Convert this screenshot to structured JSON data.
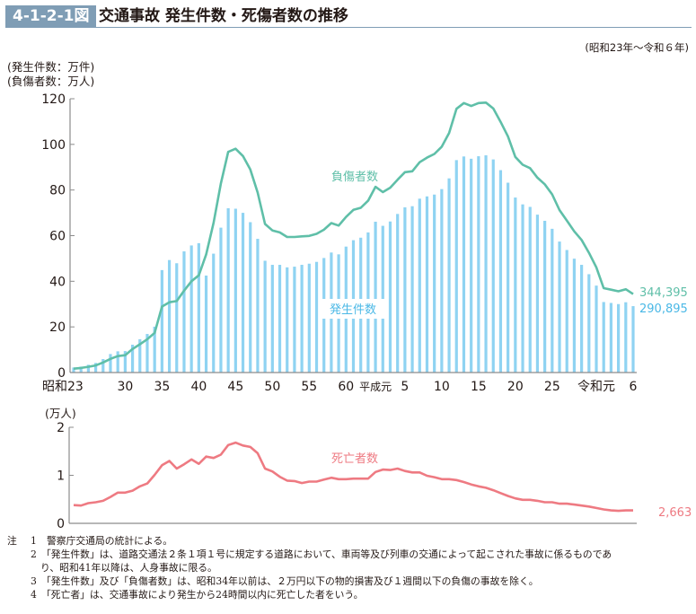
{
  "header": {
    "figure_number": "4-1-2-1図",
    "title": "交通事故 発生件数・死傷者数の推移",
    "period": "(昭和23年〜令和６年)"
  },
  "colors": {
    "header_band": "#7f9db5",
    "bars": "#8fd3f2",
    "injured_line": "#5fbfa8",
    "deaths_line": "#ee7a82",
    "axis": "#8c8c8c"
  },
  "chart_data": [
    {
      "type": "bar+line",
      "title": "交通事故 発生件数・死傷者数の推移",
      "unit_labels": [
        "(発生件数：万件)",
        "(負傷者数：万人)"
      ],
      "ylim": [
        0,
        120
      ],
      "yticks": [
        0,
        20,
        40,
        60,
        80,
        100,
        120
      ],
      "xtick_labels": [
        {
          "index": 0,
          "label": "昭和23"
        },
        {
          "index": 7,
          "label": "30"
        },
        {
          "index": 12,
          "label": "35"
        },
        {
          "index": 17,
          "label": "40"
        },
        {
          "index": 22,
          "label": "45"
        },
        {
          "index": 27,
          "label": "50"
        },
        {
          "index": 32,
          "label": "55"
        },
        {
          "index": 37,
          "label": "60"
        },
        {
          "index": 41,
          "label": "平成元"
        },
        {
          "index": 45,
          "label": "5"
        },
        {
          "index": 50,
          "label": "10"
        },
        {
          "index": 55,
          "label": "15"
        },
        {
          "index": 60,
          "label": "20"
        },
        {
          "index": 65,
          "label": "25"
        },
        {
          "index": 71,
          "label": "令和元"
        },
        {
          "index": 76,
          "label": "6"
        }
      ],
      "years": [
        "S23",
        "S24",
        "S25",
        "S26",
        "S27",
        "S28",
        "S29",
        "S30",
        "S31",
        "S32",
        "S33",
        "S34",
        "S35",
        "S36",
        "S37",
        "S38",
        "S39",
        "S40",
        "S41",
        "S42",
        "S43",
        "S44",
        "S45",
        "S46",
        "S47",
        "S48",
        "S49",
        "S50",
        "S51",
        "S52",
        "S53",
        "S54",
        "S55",
        "S56",
        "S57",
        "S58",
        "S59",
        "S60",
        "S61",
        "S62",
        "S63",
        "H1",
        "H2",
        "H3",
        "H4",
        "H5",
        "H6",
        "H7",
        "H8",
        "H9",
        "H10",
        "H11",
        "H12",
        "H13",
        "H14",
        "H15",
        "H16",
        "H17",
        "H18",
        "H19",
        "H20",
        "H21",
        "H22",
        "H23",
        "H24",
        "H25",
        "H26",
        "H27",
        "H28",
        "H29",
        "H30",
        "R1",
        "R2",
        "R3",
        "R4",
        "R5",
        "R6"
      ],
      "series": [
        {
          "name": "発生件数",
          "kind": "bar",
          "label_text": "発生件数",
          "end_label": "290,895",
          "values": [
            2.2,
            2.6,
            3.4,
            4.2,
            5.9,
            8.1,
            9.3,
            9.4,
            12.2,
            14.6,
            16.9,
            20.1,
            44.9,
            49.3,
            47.9,
            53.1,
            55.7,
            56.7,
            42.5,
            52.1,
            63.5,
            72.0,
            71.8,
            70.0,
            65.9,
            58.6,
            49.0,
            47.2,
            47.2,
            46.1,
            46.4,
            47.2,
            47.7,
            48.5,
            50.2,
            52.6,
            51.8,
            55.2,
            58.0,
            59.1,
            61.4,
            66.1,
            64.3,
            66.2,
            69.5,
            72.4,
            72.9,
            76.2,
            77.2,
            78.0,
            80.4,
            85.1,
            93.1,
            94.7,
            93.7,
            94.8,
            95.2,
            93.4,
            88.7,
            83.2,
            76.7,
            73.7,
            72.6,
            69.2,
            66.5,
            63.0,
            57.4,
            53.7,
            49.9,
            47.2,
            43.1,
            38.1,
            30.9,
            30.5,
            30.0,
            30.8,
            29.1
          ]
        },
        {
          "name": "負傷者数",
          "kind": "line",
          "label_text": "負傷者数",
          "end_label": "344,395",
          "values": [
            1.7,
            2.0,
            2.5,
            3.1,
            4.4,
            6.0,
            7.2,
            7.6,
            10.3,
            12.4,
            14.6,
            17.4,
            28.9,
            30.8,
            31.3,
            35.9,
            40.0,
            42.6,
            51.8,
            65.6,
            82.8,
            96.7,
            98.1,
            94.9,
            89.0,
            78.9,
            65.1,
            62.3,
            61.4,
            59.4,
            59.4,
            59.7,
            59.9,
            60.8,
            62.6,
            65.5,
            64.4,
            68.2,
            71.3,
            72.2,
            75.3,
            81.4,
            79.1,
            81.0,
            84.5,
            87.8,
            88.2,
            92.2,
            94.2,
            95.8,
            99.0,
            105.0,
            115.6,
            118.1,
            116.8,
            118.1,
            118.3,
            115.7,
            109.9,
            103.5,
            94.5,
            91.1,
            89.6,
            85.4,
            82.5,
            78.1,
            71.2,
            66.6,
            61.9,
            58.1,
            52.5,
            46.1,
            37.0,
            36.3,
            35.6,
            36.5,
            34.4
          ]
        }
      ]
    },
    {
      "type": "line",
      "unit_label": "(万人)",
      "ylim": [
        0,
        2
      ],
      "yticks": [
        0,
        1,
        2
      ],
      "series": [
        {
          "name": "死亡者数",
          "label_text": "死亡者数",
          "end_label": "2,663",
          "values": [
            0.38,
            0.37,
            0.42,
            0.44,
            0.47,
            0.55,
            0.64,
            0.64,
            0.68,
            0.77,
            0.83,
            1.01,
            1.21,
            1.3,
            1.14,
            1.23,
            1.33,
            1.24,
            1.39,
            1.36,
            1.43,
            1.63,
            1.68,
            1.62,
            1.59,
            1.46,
            1.14,
            1.08,
            0.97,
            0.89,
            0.88,
            0.84,
            0.87,
            0.87,
            0.91,
            0.95,
            0.92,
            0.92,
            0.93,
            0.93,
            0.93,
            1.07,
            1.12,
            1.11,
            1.14,
            1.09,
            1.06,
            1.06,
            0.99,
            0.96,
            0.92,
            0.92,
            0.9,
            0.86,
            0.81,
            0.77,
            0.74,
            0.69,
            0.63,
            0.57,
            0.52,
            0.49,
            0.49,
            0.47,
            0.44,
            0.44,
            0.41,
            0.41,
            0.39,
            0.37,
            0.35,
            0.32,
            0.29,
            0.27,
            0.26,
            0.27,
            0.27
          ]
        }
      ]
    }
  ],
  "notes": {
    "mark": "注",
    "items": [
      {
        "num": "1",
        "text": "警察庁交通局の統計による。"
      },
      {
        "num": "2",
        "text": "「発生件数」は、道路交通法２条１項１号に規定する道路において、車両等及び列車の交通によって起こされた事故に係るものであ",
        "cont": "り、昭和41年以降は、人身事故に限る。"
      },
      {
        "num": "3",
        "text": "「発生件数」及び「負傷者数」は、昭和34年以前は、２万円以下の物的損害及び１週間以下の負傷の事故を除く。"
      },
      {
        "num": "4",
        "text": "「死亡者」は、交通事故により発生から24時間以内に死亡した者をいう。"
      }
    ]
  }
}
